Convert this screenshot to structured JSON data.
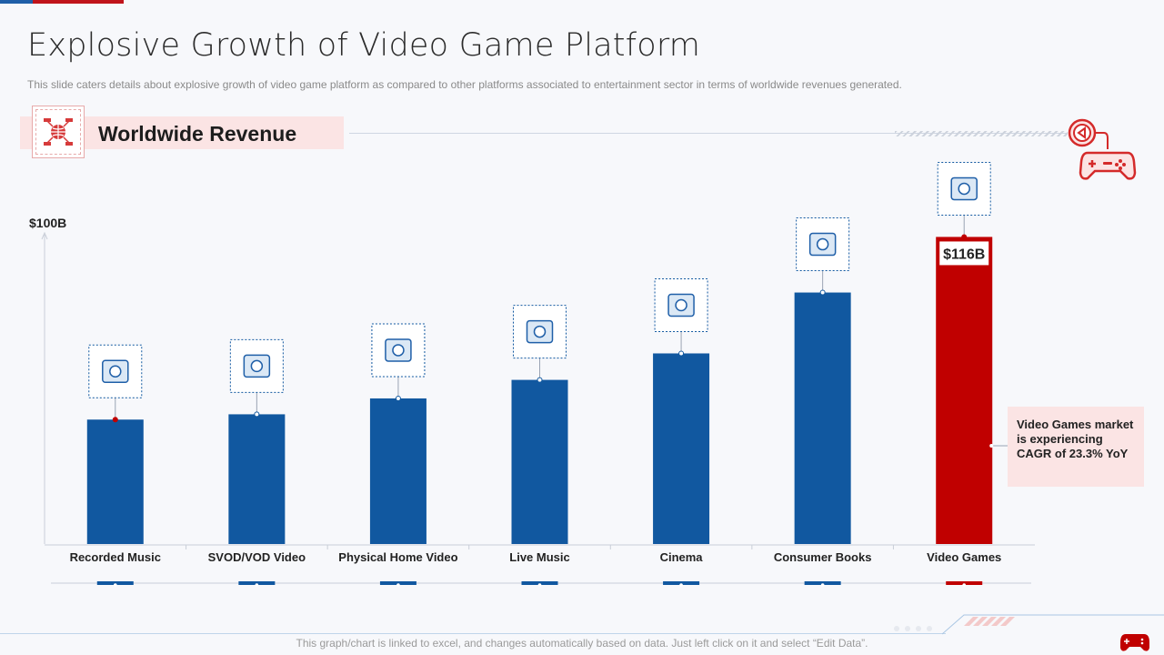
{
  "title": "Explosive Growth of Video Game Platform",
  "subtitle": "This slide caters details about explosive growth of video game platform as compared to other platforms associated to entertainment sector in terms of worldwide revenues generated.",
  "section": {
    "title": "Worldwide Revenue",
    "icon": "globe-network-icon",
    "right_icon": "gamepad-icon"
  },
  "chart_data": {
    "type": "bar",
    "categories": [
      "Recorded Music",
      "SVOD/VOD Video",
      "Physical Home Video",
      "Live Music",
      "Cinema",
      "Consumer Books",
      "Video Games"
    ],
    "values": [
      47,
      49,
      55,
      62,
      72,
      95,
      116
    ],
    "y_top_label": "$100B",
    "data_labels": [
      "",
      "",
      "",
      "",
      "",
      "",
      "$116B"
    ],
    "icons": [
      "vinyl-record-icon",
      "video-player-icon",
      "dvd-player-icon",
      "microphone-icon",
      "cinema-building-icon",
      "books-icon",
      "handheld-console-icon"
    ],
    "colors": {
      "default": "#1158a0",
      "highlight": "#c00000"
    },
    "highlight_category": "Video Games",
    "grid": false,
    "legend": "none"
  },
  "callout": "Video Games market is experiencing CAGR of 23.3% YoY",
  "footer_note": "This graph/chart is linked to excel, and changes automatically based on data. Just left click on it and select “Edit Data”."
}
